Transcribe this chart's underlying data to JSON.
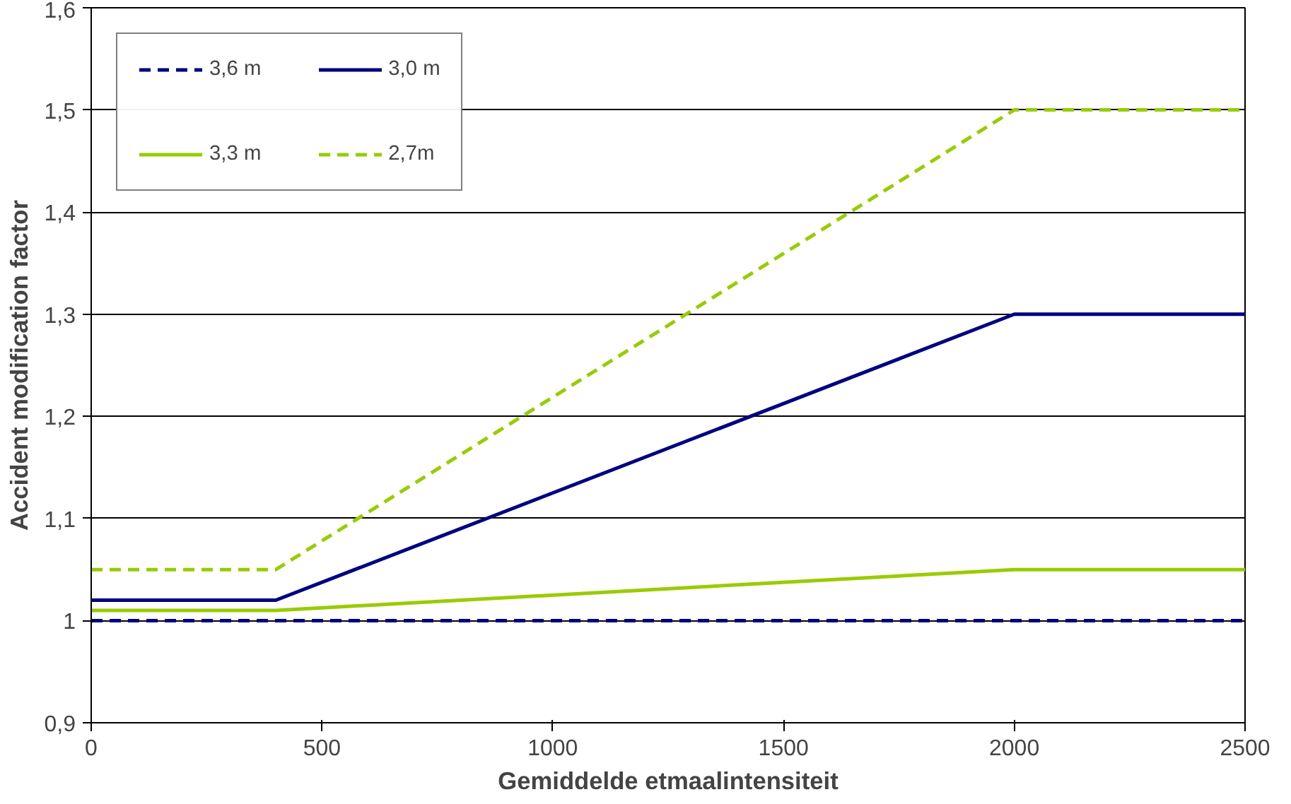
{
  "chart_data": {
    "type": "line",
    "xlabel": "Gemiddelde etmaalintensiteit",
    "ylabel": "Accident modification factor",
    "xlim": [
      0,
      2500
    ],
    "xticks": [
      0,
      500,
      1000,
      1500,
      2000,
      2500
    ],
    "ylim": [
      0.9,
      1.6
    ],
    "yticks": [
      {
        "value": 0.9,
        "label": "0,9"
      },
      {
        "value": 1.0,
        "label": "1"
      },
      {
        "value": 1.1,
        "label": "1,1"
      },
      {
        "value": 1.2,
        "label": "1,2"
      },
      {
        "value": 1.3,
        "label": "1,3"
      },
      {
        "value": 1.4,
        "label": "1,4"
      },
      {
        "value": 1.5,
        "label": "1,5"
      },
      {
        "value": 1.6,
        "label": "1,6"
      }
    ],
    "x": [
      0,
      400,
      2000,
      2500
    ],
    "series": [
      {
        "name": "3,6 m",
        "color": "#000080",
        "line_style": "dashed",
        "values": [
          1.0,
          1.0,
          1.0,
          1.0
        ]
      },
      {
        "name": "3,3 m",
        "color": "#99cc00",
        "line_style": "solid",
        "values": [
          1.01,
          1.01,
          1.05,
          1.05
        ]
      },
      {
        "name": "3,0 m",
        "color": "#000080",
        "line_style": "solid",
        "values": [
          1.02,
          1.02,
          1.3,
          1.3
        ]
      },
      {
        "name": "2,7m",
        "color": "#99cc00",
        "line_style": "dashed",
        "values": [
          1.05,
          1.05,
          1.5,
          1.5
        ]
      }
    ],
    "grid": "y",
    "legend": "top left",
    "marker": "none"
  }
}
